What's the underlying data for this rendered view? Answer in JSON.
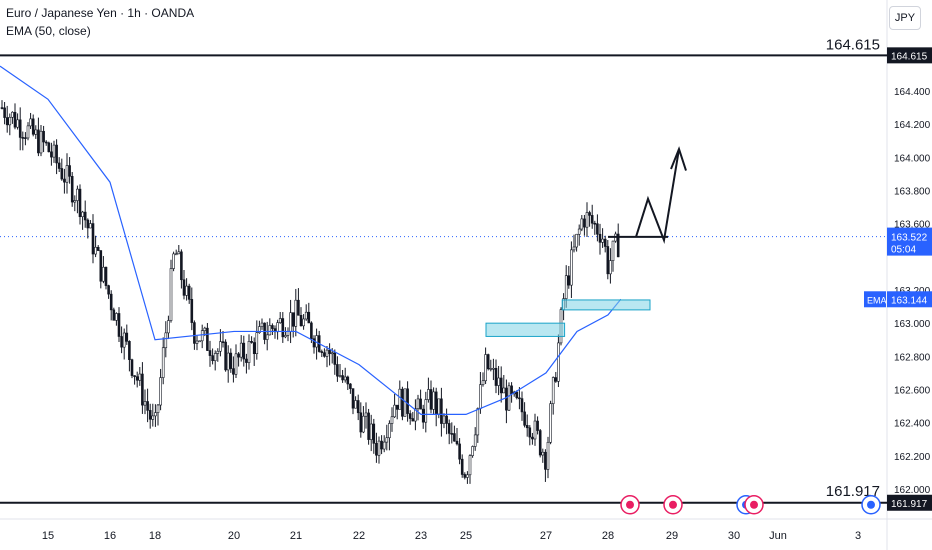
{
  "header": {
    "symbol_line": "Euro / Japanese Yen · 1h · OANDA",
    "indicator_line": "EMA (50, close)"
  },
  "currency_button": "JPY",
  "price_axis": {
    "ticks": [
      "164.400",
      "164.200",
      "164.000",
      "163.800",
      "163.600",
      "163.200",
      "163.000",
      "162.800",
      "162.600",
      "162.400",
      "162.200",
      "162.000"
    ],
    "last_price_label": "163.522",
    "countdown_label": "05:04",
    "ema_tag": "EMA",
    "ema_value_label": "163.144",
    "upper_level_label": "164.615",
    "lower_level_label": "161.917"
  },
  "time_axis": {
    "labels": [
      "15",
      "16",
      "18",
      "20",
      "21",
      "22",
      "23",
      "25",
      "27",
      "28",
      "29",
      "30",
      "Jun",
      "3"
    ]
  },
  "colors": {
    "candle_bull": "#131722",
    "candle_bear": "#131722",
    "ema_line": "#2962ff",
    "zone_fill": "#7fd3e6",
    "zone_border": "#1aa3c8",
    "price_tag": "#2962ff",
    "level_tag": "#131722",
    "event_dividend": "#e91e63",
    "event_earnings": "#2962ff"
  },
  "chart_data": {
    "type": "candlestick",
    "instrument": "Euro / Japanese Yen",
    "timeframe": "1h",
    "source": "OANDA",
    "indicator": "EMA (50, close)",
    "ylim": [
      161.9,
      164.75
    ],
    "horizontal_levels": [
      164.615,
      161.917
    ],
    "last_price": 163.522,
    "ema_last": 163.144,
    "close_path": [
      {
        "x": "15",
        "close": 164.05
      },
      {
        "x": "15.5",
        "close": 163.75
      },
      {
        "x": "16",
        "close": 163.15
      },
      {
        "x": "16.5",
        "close": 162.95
      },
      {
        "x": "18",
        "close": 162.35
      },
      {
        "x": "18.5",
        "close": 163.45
      },
      {
        "x": "19",
        "close": 162.95
      },
      {
        "x": "20",
        "close": 162.75
      },
      {
        "x": "20.5",
        "close": 162.95
      },
      {
        "x": "21",
        "close": 163.05
      },
      {
        "x": "21.5",
        "close": 162.85
      },
      {
        "x": "22",
        "close": 162.45
      },
      {
        "x": "22.3",
        "close": 162.25
      },
      {
        "x": "22.6",
        "close": 162.55
      },
      {
        "x": "23",
        "close": 162.45
      },
      {
        "x": "23.5",
        "close": 162.55
      },
      {
        "x": "25",
        "close": 162.1
      },
      {
        "x": "25.5",
        "close": 162.75
      },
      {
        "x": "26",
        "close": 162.55
      },
      {
        "x": "26.5",
        "close": 162.45
      },
      {
        "x": "27",
        "close": 162.2
      },
      {
        "x": "27.3",
        "close": 163.2
      },
      {
        "x": "27.6",
        "close": 163.65
      },
      {
        "x": "27.9",
        "close": 163.55
      },
      {
        "x": "28",
        "close": 163.35
      },
      {
        "x": "28.2",
        "close": 163.522
      }
    ],
    "ema_path": [
      {
        "x": "15",
        "value": 164.35
      },
      {
        "x": "16",
        "value": 163.85
      },
      {
        "x": "18",
        "value": 162.9
      },
      {
        "x": "20",
        "value": 162.95
      },
      {
        "x": "21",
        "value": 162.95
      },
      {
        "x": "22",
        "value": 162.75
      },
      {
        "x": "23",
        "value": 162.45
      },
      {
        "x": "25",
        "value": 162.45
      },
      {
        "x": "26",
        "value": 162.55
      },
      {
        "x": "27",
        "value": 162.7
      },
      {
        "x": "27.5",
        "value": 162.95
      },
      {
        "x": "28",
        "value": 163.05
      },
      {
        "x": "28.2",
        "value": 163.144
      }
    ],
    "annotations": [
      {
        "type": "zone",
        "from_x": "25",
        "to_x": "27.3",
        "low": 162.92,
        "high": 163.0
      },
      {
        "type": "zone",
        "from_x": "27.1",
        "to_x": "28.5",
        "low": 163.08,
        "high": 163.14
      },
      {
        "type": "projection_arrow",
        "points": [
          163.5,
          163.75,
          163.52,
          164.05
        ]
      }
    ],
    "x_tick_labels": [
      "15",
      "16",
      "18",
      "20",
      "21",
      "22",
      "23",
      "25",
      "27",
      "28",
      "29",
      "30",
      "Jun",
      "3"
    ],
    "y_tick_labels": [
      "164.400",
      "164.200",
      "164.000",
      "163.800",
      "163.600",
      "163.200",
      "163.000",
      "162.800",
      "162.600",
      "162.400",
      "162.200",
      "162.000"
    ]
  }
}
